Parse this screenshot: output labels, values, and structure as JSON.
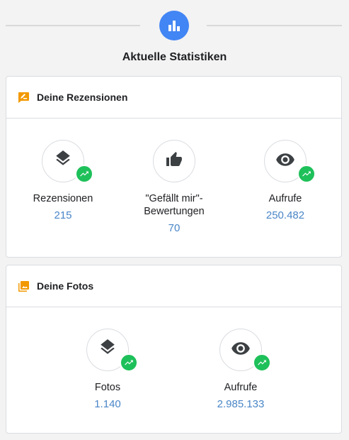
{
  "header": {
    "title": "Aktuelle Statistiken",
    "icon": "bar-chart-icon"
  },
  "colors": {
    "accent": "#4285f4",
    "orange": "#f29900",
    "trend_green": "#1ec05a",
    "value_blue": "#4a86c7"
  },
  "reviews_card": {
    "title": "Deine Rezensionen",
    "stats": [
      {
        "label": "Rezensionen",
        "value": "215",
        "icon": "layers-icon",
        "trending": true
      },
      {
        "label": "\"Gefällt mir\"-Bewertungen",
        "value": "70",
        "icon": "thumb-up-icon",
        "trending": false
      },
      {
        "label": "Aufrufe",
        "value": "250.482",
        "icon": "eye-icon",
        "trending": true
      }
    ]
  },
  "photos_card": {
    "title": "Deine Fotos",
    "stats": [
      {
        "label": "Fotos",
        "value": "1.140",
        "icon": "layers-icon",
        "trending": true
      },
      {
        "label": "Aufrufe",
        "value": "2.985.133",
        "icon": "eye-icon",
        "trending": true
      }
    ]
  }
}
